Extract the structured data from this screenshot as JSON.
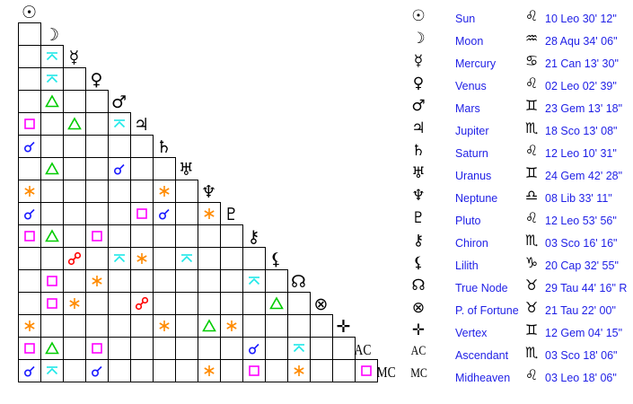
{
  "colors": {
    "conjunction": "#1a1aff",
    "sextile": "#ff8a00",
    "square": "#ff00ff",
    "trine": "#00cc00",
    "opposition": "#ff0000",
    "quincunx": "#1ee8e8"
  },
  "planets": [
    {
      "name": "Sun",
      "glyph": "☉",
      "sign_icon": "leo-icon",
      "sign_glyph": "♌",
      "position": "10 Leo 30' 12\""
    },
    {
      "name": "Moon",
      "glyph": "☽",
      "sign_icon": "aquarius-icon",
      "sign_glyph": "♒",
      "position": "28 Aqu 34' 06\""
    },
    {
      "name": "Mercury",
      "glyph": "☿",
      "sign_icon": "cancer-icon",
      "sign_glyph": "♋",
      "position": "21 Can 13' 30\""
    },
    {
      "name": "Venus",
      "glyph": "♀",
      "sign_icon": "leo-icon",
      "sign_glyph": "♌",
      "position": "02 Leo 02' 39\""
    },
    {
      "name": "Mars",
      "glyph": "♂",
      "sign_icon": "gemini-icon",
      "sign_glyph": "♊",
      "position": "23 Gem 13' 18\""
    },
    {
      "name": "Jupiter",
      "glyph": "♃",
      "sign_icon": "scorpio-icon",
      "sign_glyph": "♏",
      "position": "18 Sco 13' 08\""
    },
    {
      "name": "Saturn",
      "glyph": "♄",
      "sign_icon": "leo-icon",
      "sign_glyph": "♌",
      "position": "12 Leo 10' 31\""
    },
    {
      "name": "Uranus",
      "glyph": "♅",
      "sign_icon": "gemini-icon",
      "sign_glyph": "♊",
      "position": "24 Gem 42' 28\""
    },
    {
      "name": "Neptune",
      "glyph": "♆",
      "sign_icon": "libra-icon",
      "sign_glyph": "♎",
      "position": "08 Lib 33' 11\""
    },
    {
      "name": "Pluto",
      "glyph": "♇",
      "sign_icon": "leo-icon",
      "sign_glyph": "♌",
      "position": "12 Leo 53' 56\""
    },
    {
      "name": "Chiron",
      "glyph": "⚷",
      "sign_icon": "scorpio-icon",
      "sign_glyph": "♏",
      "position": "03 Sco 16' 16\""
    },
    {
      "name": "Lilith",
      "glyph": "⚸",
      "sign_icon": "capricorn-icon",
      "sign_glyph": "♑",
      "position": "20 Cap 32' 55\""
    },
    {
      "name": "True Node",
      "glyph": "☊",
      "sign_icon": "taurus-icon",
      "sign_glyph": "♉",
      "position": "29 Tau 44' 16\" R"
    },
    {
      "name": "P. of Fortune",
      "glyph": "⊗",
      "sign_icon": "taurus-icon",
      "sign_glyph": "♉",
      "position": "21 Tau 22' 00\""
    },
    {
      "name": "Vertex",
      "glyph": "✛",
      "sign_icon": "gemini-icon",
      "sign_glyph": "♊",
      "position": "12 Gem 04' 15\""
    },
    {
      "name": "Ascendant",
      "glyph": "AC",
      "sign_icon": "scorpio-icon",
      "sign_glyph": "♏",
      "position": "03 Sco 18' 06\""
    },
    {
      "name": "Midheaven",
      "glyph": "MC",
      "sign_icon": "leo-icon",
      "sign_glyph": "♌",
      "position": "03 Leo 18' 06\""
    }
  ],
  "aspects": [
    {
      "row": 2,
      "col": 1,
      "type": "quincunx"
    },
    {
      "row": 3,
      "col": 1,
      "type": "quincunx"
    },
    {
      "row": 4,
      "col": 1,
      "type": "trine"
    },
    {
      "row": 5,
      "col": 0,
      "type": "square"
    },
    {
      "row": 5,
      "col": 2,
      "type": "trine"
    },
    {
      "row": 5,
      "col": 4,
      "type": "quincunx"
    },
    {
      "row": 6,
      "col": 0,
      "type": "conjunction"
    },
    {
      "row": 7,
      "col": 1,
      "type": "trine"
    },
    {
      "row": 7,
      "col": 4,
      "type": "conjunction"
    },
    {
      "row": 8,
      "col": 0,
      "type": "sextile"
    },
    {
      "row": 8,
      "col": 6,
      "type": "sextile"
    },
    {
      "row": 9,
      "col": 0,
      "type": "conjunction"
    },
    {
      "row": 9,
      "col": 5,
      "type": "square"
    },
    {
      "row": 9,
      "col": 6,
      "type": "conjunction"
    },
    {
      "row": 9,
      "col": 8,
      "type": "sextile"
    },
    {
      "row": 10,
      "col": 0,
      "type": "square"
    },
    {
      "row": 10,
      "col": 1,
      "type": "trine"
    },
    {
      "row": 10,
      "col": 3,
      "type": "square"
    },
    {
      "row": 11,
      "col": 2,
      "type": "opposition"
    },
    {
      "row": 11,
      "col": 4,
      "type": "quincunx"
    },
    {
      "row": 11,
      "col": 5,
      "type": "sextile"
    },
    {
      "row": 11,
      "col": 7,
      "type": "quincunx"
    },
    {
      "row": 12,
      "col": 1,
      "type": "square"
    },
    {
      "row": 12,
      "col": 3,
      "type": "sextile"
    },
    {
      "row": 12,
      "col": 10,
      "type": "quincunx"
    },
    {
      "row": 13,
      "col": 1,
      "type": "square"
    },
    {
      "row": 13,
      "col": 2,
      "type": "sextile"
    },
    {
      "row": 13,
      "col": 5,
      "type": "opposition"
    },
    {
      "row": 13,
      "col": 11,
      "type": "trine"
    },
    {
      "row": 14,
      "col": 0,
      "type": "sextile"
    },
    {
      "row": 14,
      "col": 6,
      "type": "sextile"
    },
    {
      "row": 14,
      "col": 8,
      "type": "trine"
    },
    {
      "row": 14,
      "col": 9,
      "type": "sextile"
    },
    {
      "row": 15,
      "col": 0,
      "type": "square"
    },
    {
      "row": 15,
      "col": 1,
      "type": "trine"
    },
    {
      "row": 15,
      "col": 3,
      "type": "square"
    },
    {
      "row": 15,
      "col": 10,
      "type": "conjunction"
    },
    {
      "row": 15,
      "col": 12,
      "type": "quincunx"
    },
    {
      "row": 16,
      "col": 0,
      "type": "conjunction"
    },
    {
      "row": 16,
      "col": 1,
      "type": "quincunx"
    },
    {
      "row": 16,
      "col": 3,
      "type": "conjunction"
    },
    {
      "row": 16,
      "col": 8,
      "type": "sextile"
    },
    {
      "row": 16,
      "col": 10,
      "type": "square"
    },
    {
      "row": 16,
      "col": 12,
      "type": "sextile"
    },
    {
      "row": 16,
      "col": 15,
      "type": "square"
    }
  ]
}
